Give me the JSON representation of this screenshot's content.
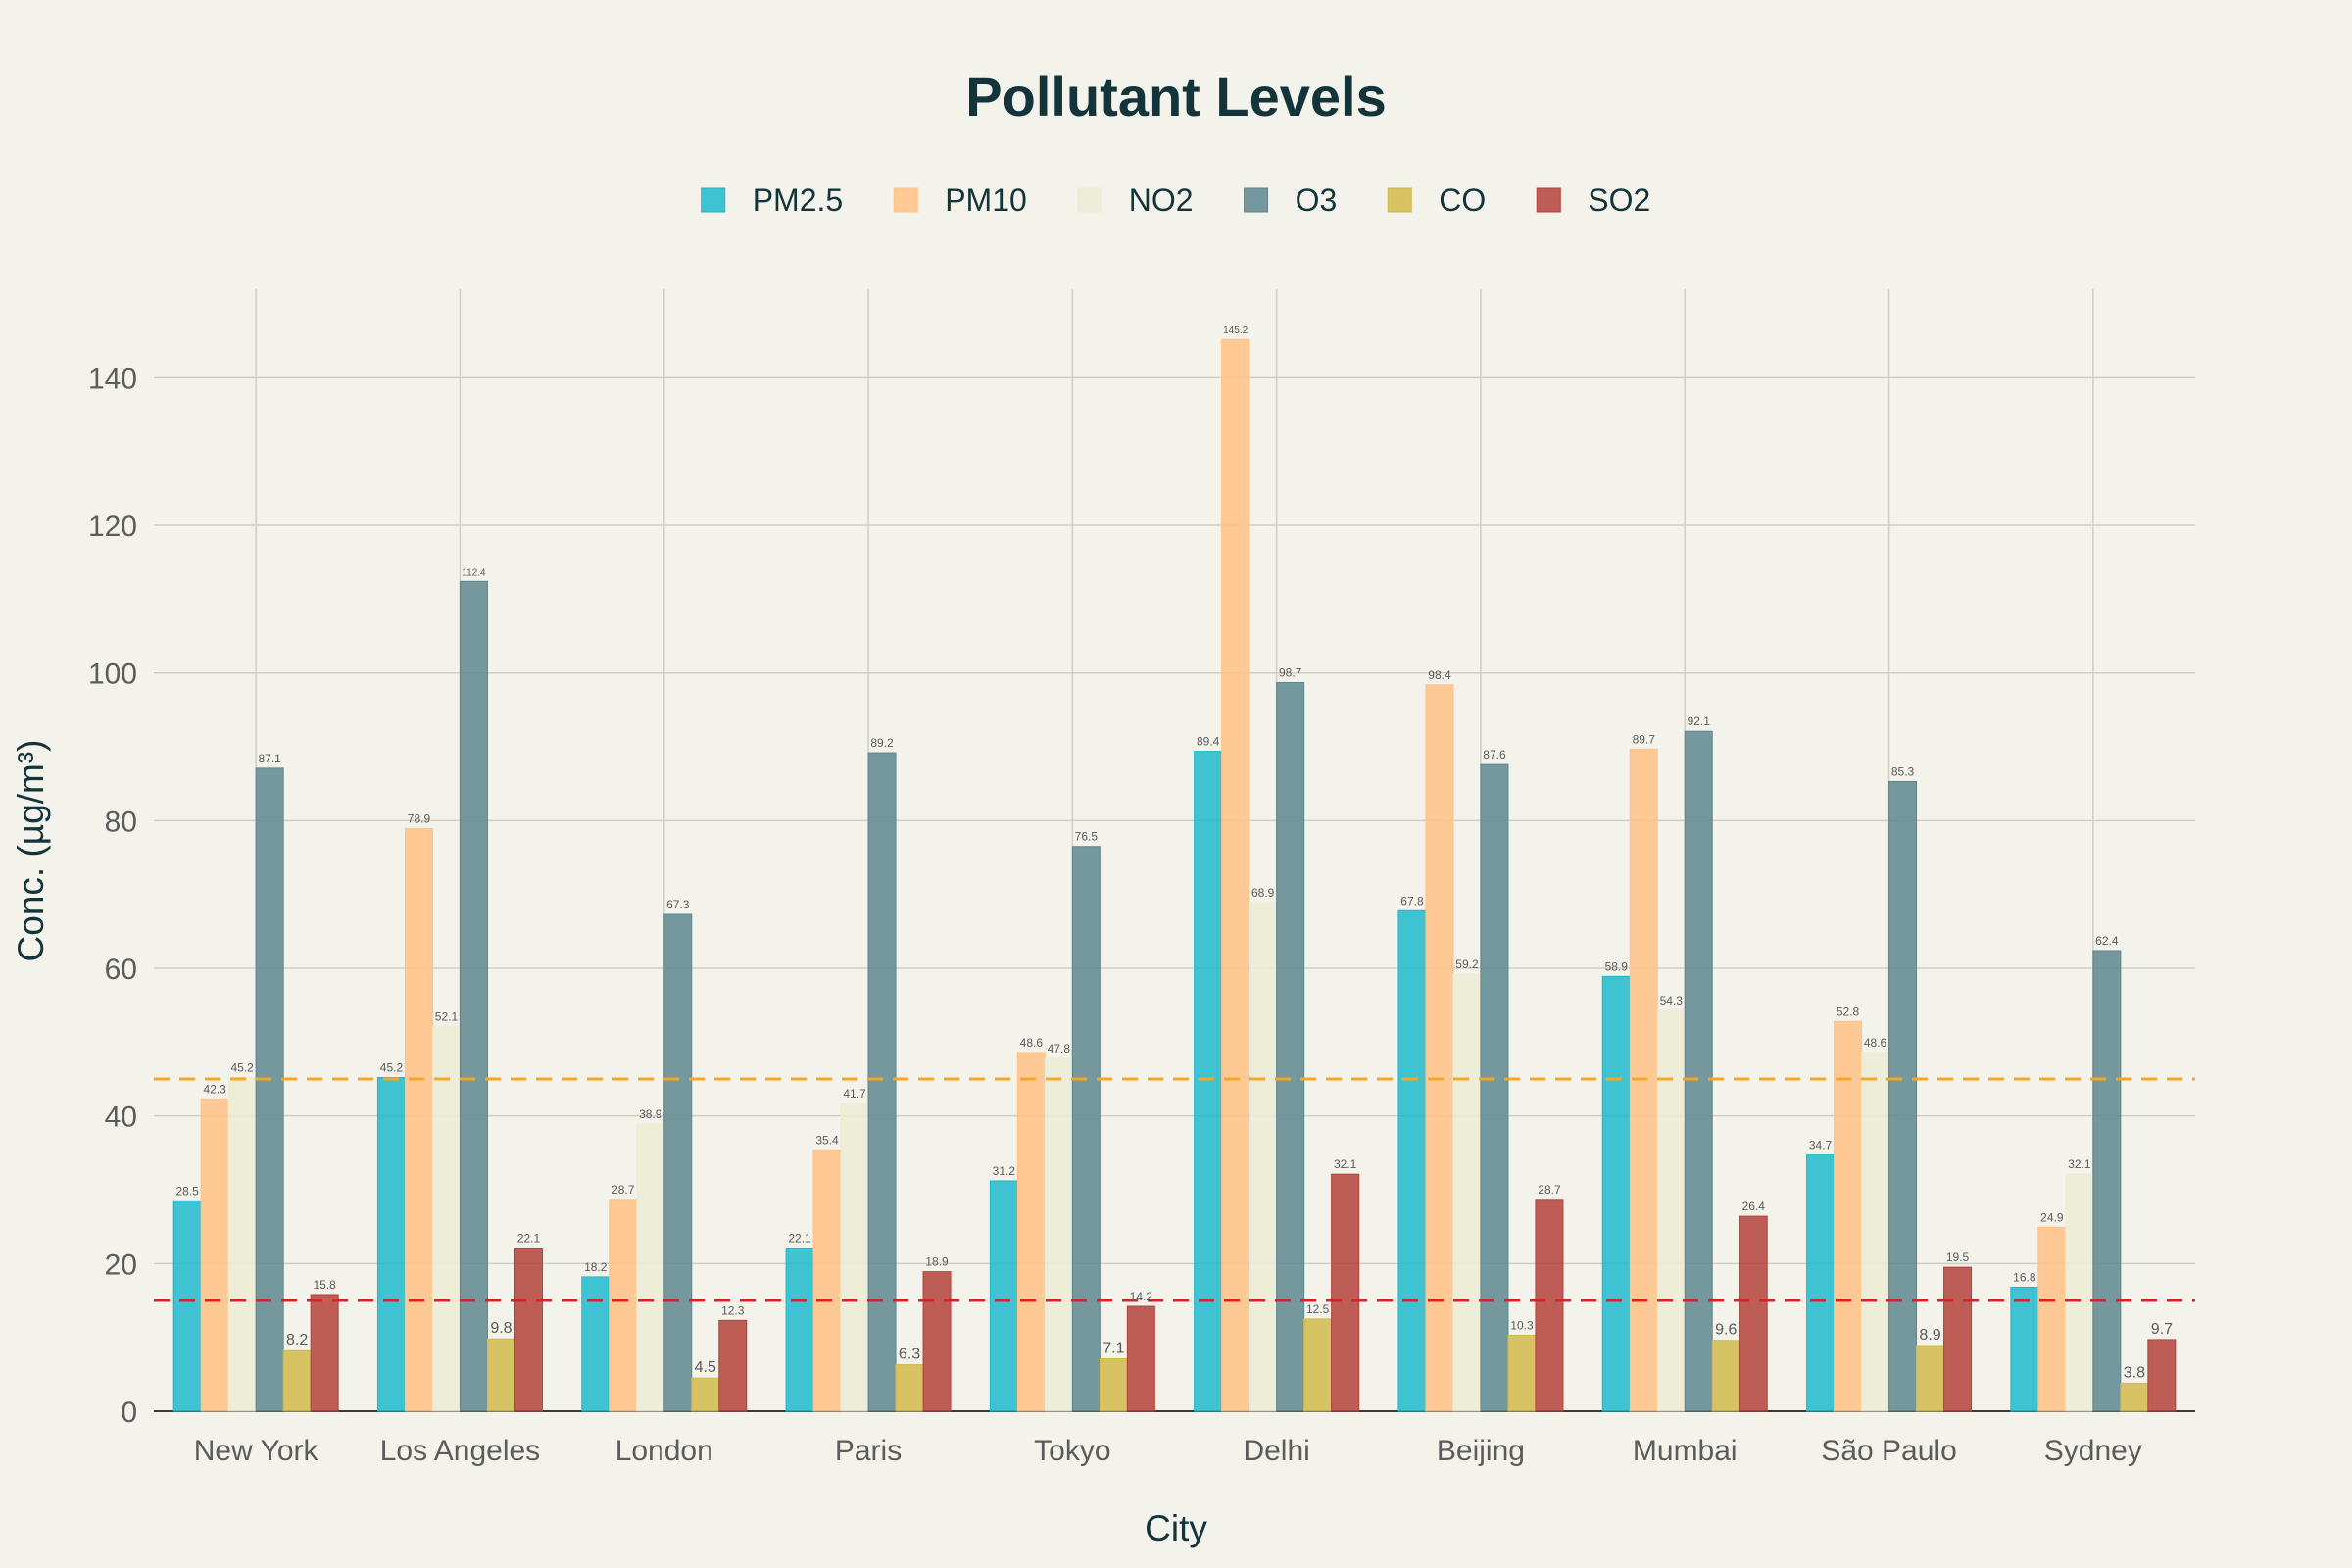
{
  "chart_data": {
    "type": "bar",
    "title": "Pollutant Levels",
    "xlabel": "City",
    "ylabel": "Conc. (µg/m³)",
    "categories": [
      "New York",
      "Los Angeles",
      "London",
      "Paris",
      "Tokyo",
      "Delhi",
      "Beijing",
      "Mumbai",
      "São Paulo",
      "Sydney"
    ],
    "series": [
      {
        "name": "PM2.5",
        "color": "#1FB8CD",
        "values": [
          28.5,
          45.2,
          18.2,
          22.1,
          31.2,
          89.4,
          67.8,
          58.9,
          34.7,
          16.8
        ],
        "labels": [
          "28.5",
          "45.2",
          "18.2",
          "22.1",
          "31.2",
          "89.4",
          "67.8",
          "58.9",
          "34.7",
          "16.8"
        ]
      },
      {
        "name": "PM10",
        "color": "#FFC185",
        "values": [
          42.3,
          78.9,
          28.7,
          35.4,
          48.6,
          145.2,
          98.4,
          89.7,
          52.8,
          24.9
        ],
        "labels": [
          "42.3",
          "78.9",
          "28.7",
          "35.4",
          "48.6",
          "145.2",
          "98.4",
          "89.7",
          "52.8",
          "24.9"
        ]
      },
      {
        "name": "NO2",
        "color": "#ECEBD5",
        "values": [
          45.2,
          52.1,
          38.9,
          41.7,
          47.8,
          68.9,
          59.2,
          54.3,
          48.6,
          32.1
        ],
        "labels": [
          "45.2",
          "52.1",
          "38.9",
          "41.7",
          "47.8",
          "68.9",
          "59.2",
          "54.3",
          "48.6",
          "32.1"
        ]
      },
      {
        "name": "O3",
        "color": "#5D878F",
        "values": [
          87.1,
          112.4,
          67.3,
          89.2,
          76.5,
          98.7,
          87.6,
          92.1,
          85.3,
          62.4
        ],
        "labels": [
          "87.1",
          "112.4",
          "67.3",
          "89.2",
          "76.5",
          "98.7",
          "87.6",
          "92.1",
          "85.3",
          "62.4"
        ]
      },
      {
        "name": "CO",
        "color": "#D2BA4C",
        "values": [
          8.2,
          9.8,
          4.5,
          6.3,
          7.1,
          12.5,
          10.3,
          9.6,
          8.9,
          3.8
        ],
        "labels": [
          "8.2",
          "9.8",
          "4.5",
          "6.3",
          "7.1",
          "12.5",
          "10.3",
          "9.6",
          "8.9",
          "3.8"
        ]
      },
      {
        "name": "SO2",
        "color": "#B4413C",
        "values": [
          15.8,
          22.1,
          12.3,
          18.9,
          14.2,
          32.1,
          28.7,
          26.4,
          19.5,
          9.7
        ],
        "labels": [
          "15.8",
          "22.1",
          "12.3",
          "18.9",
          "14.2",
          "32.1",
          "28.7",
          "26.4",
          "19.5",
          "9.7"
        ]
      }
    ],
    "yticks": [
      "0",
      "20",
      "40",
      "60",
      "80",
      "100",
      "120",
      "140"
    ],
    "ylim": [
      0,
      152
    ],
    "reference_lines": [
      {
        "value": 45,
        "color": "#F5A623",
        "style": "dashed"
      },
      {
        "value": 15,
        "color": "#E02020",
        "style": "dashed"
      }
    ],
    "grid": true,
    "legend_position": "top-center",
    "colors": {
      "background": "#F3F3EC",
      "grid": "#CFCFC6",
      "axis": "#3A3A3A",
      "title": "#13343B"
    }
  }
}
